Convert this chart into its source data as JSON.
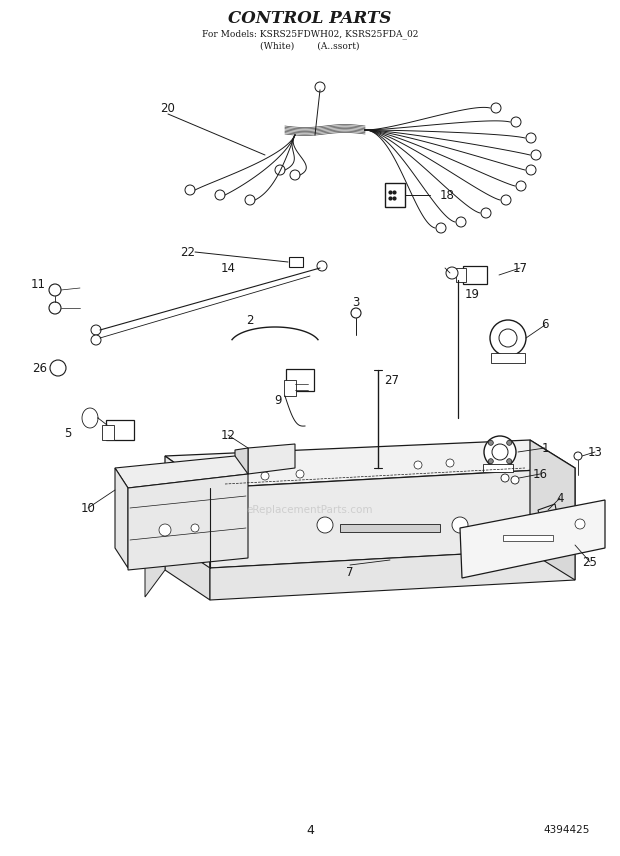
{
  "title_line1": "CONTROL PARTS",
  "title_line2": "For Models: KSRS25FDWH02, KSRS25FDA_02",
  "title_line3": "(White)      (A..ssort)",
  "page_number": "4",
  "doc_number": "4394425",
  "background_color": "#ffffff",
  "line_color": "#1a1a1a",
  "watermark_text": "eReplacementParts.com"
}
